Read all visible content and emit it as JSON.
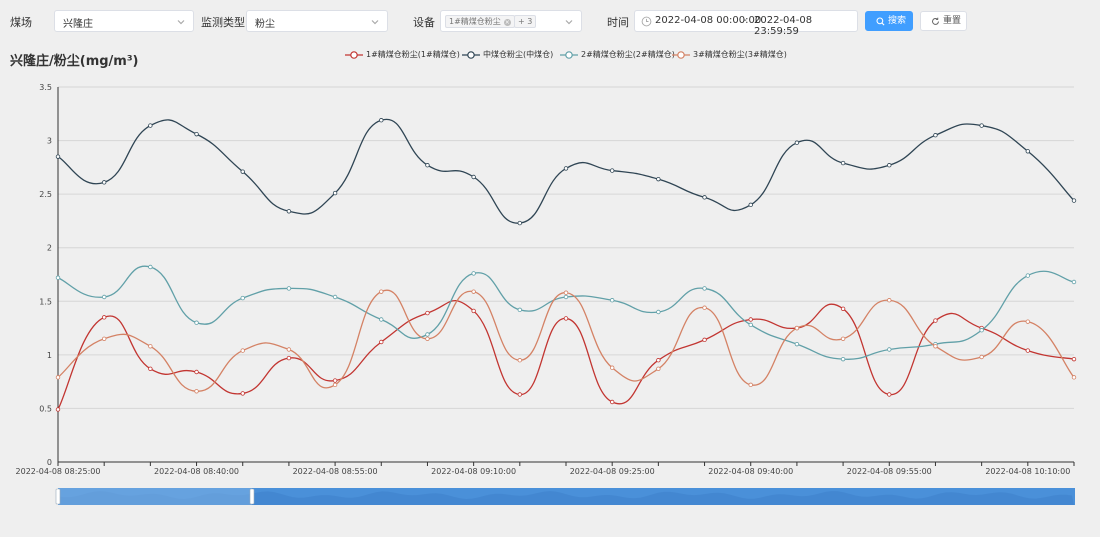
{
  "filters": {
    "mine_label": "煤场",
    "mine_value": "兴隆庄",
    "type_label": "监测类型",
    "type_value": "粉尘",
    "device_label": "设备",
    "device_tag": "1#精煤仓粉尘",
    "device_more": "+ 3",
    "time_label": "时间",
    "start_time": "2022-04-08 00:00:00",
    "time_separator": "-",
    "end_time": "2022-04-08 23:59:59",
    "search_label": "搜索",
    "reset_label": "重置"
  },
  "colors": {
    "primary": "#409eff",
    "series": [
      "#c23531",
      "#2f4554",
      "#61a0a8",
      "#d48265"
    ],
    "zoom_bar": "#4a90d9"
  },
  "chart_data": {
    "type": "line",
    "smooth": true,
    "title": "兴隆庄/粉尘(mg/m³)",
    "xlabel": "",
    "ylabel": "",
    "ylim": [
      0,
      3.5
    ],
    "yticks": [
      "0",
      "0.5",
      "1",
      "1.5",
      "2",
      "2.5",
      "3",
      "3.5"
    ],
    "grid": "horizontal",
    "legend": "top-center",
    "x": [
      "2022-04-08 08:25:00",
      "2022-04-08 08:30:00",
      "2022-04-08 08:35:00",
      "2022-04-08 08:40:00",
      "2022-04-08 08:45:00",
      "2022-04-08 08:50:00",
      "2022-04-08 08:55:00",
      "2022-04-08 09:00:00",
      "2022-04-08 09:05:00",
      "2022-04-08 09:10:00",
      "2022-04-08 09:15:00",
      "2022-04-08 09:20:00",
      "2022-04-08 09:25:00",
      "2022-04-08 09:30:00",
      "2022-04-08 09:35:00",
      "2022-04-08 09:40:00",
      "2022-04-08 09:45:00",
      "2022-04-08 09:50:00",
      "2022-04-08 09:55:00",
      "2022-04-08 10:00:00",
      "2022-04-08 10:05:00",
      "2022-04-08 10:10:00",
      "2022-04-08 10:15:00"
    ],
    "xtick_labels": [
      "2022-04-08 08:25:00",
      "2022-04-08 08:40:00",
      "2022-04-08 08:55:00",
      "2022-04-08 09:10:00",
      "2022-04-08 09:25:00",
      "2022-04-08 09:40:00",
      "2022-04-08 09:55:00",
      "2022-04-08 10:10:00"
    ],
    "series": [
      {
        "name": "1#精煤仓粉尘(1#精煤仓)",
        "values": [
          0.49,
          1.35,
          0.87,
          0.84,
          0.64,
          0.97,
          0.76,
          1.12,
          1.39,
          1.41,
          0.63,
          1.34,
          0.56,
          0.95,
          1.14,
          1.33,
          1.25,
          1.43,
          0.63,
          1.32,
          1.25,
          1.04,
          0.96
        ]
      },
      {
        "name": "中煤仓粉尘(中煤仓)",
        "values": [
          2.85,
          2.61,
          3.14,
          3.06,
          2.71,
          2.34,
          2.51,
          3.19,
          2.77,
          2.66,
          2.23,
          2.74,
          2.72,
          2.64,
          2.47,
          2.4,
          2.98,
          2.79,
          2.77,
          3.05,
          3.14,
          2.9,
          2.44
        ]
      },
      {
        "name": "2#精煤仓粉尘(2#精煤仓)",
        "values": [
          1.72,
          1.54,
          1.82,
          1.3,
          1.53,
          1.62,
          1.54,
          1.33,
          1.19,
          1.76,
          1.42,
          1.54,
          1.51,
          1.4,
          1.62,
          1.28,
          1.1,
          0.96,
          1.05,
          1.1,
          1.23,
          1.74,
          1.68
        ]
      },
      {
        "name": "3#精煤仓粉尘(3#精煤仓)",
        "values": [
          0.79,
          1.15,
          1.08,
          0.66,
          1.04,
          1.05,
          0.72,
          1.59,
          1.15,
          1.59,
          0.95,
          1.58,
          0.88,
          0.87,
          1.44,
          0.72,
          1.25,
          1.15,
          1.51,
          1.08,
          0.98,
          1.31,
          0.79
        ]
      }
    ]
  }
}
